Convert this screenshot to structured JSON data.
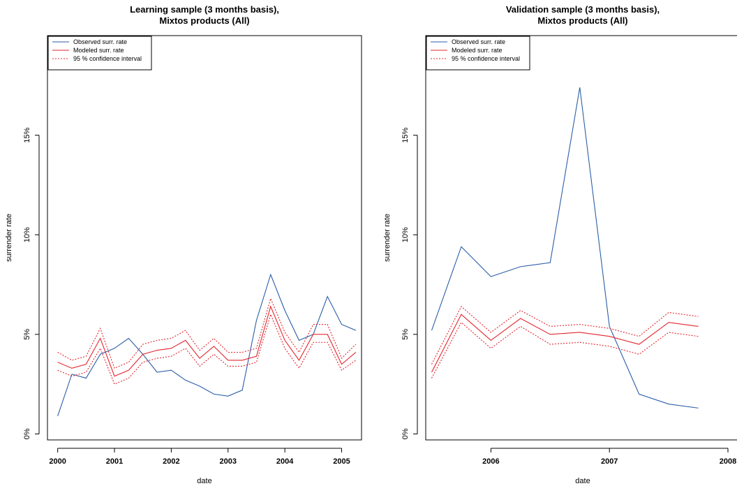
{
  "chart_data": [
    {
      "type": "line",
      "title": "Learning sample (3 months basis),",
      "subtitle": "Mixtos products (All)",
      "xlabel": "date",
      "ylabel": "surrender rate",
      "x_ticks": [
        "2000",
        "2001",
        "2002",
        "2003",
        "2004",
        "2005"
      ],
      "y_ticks": [
        "0%",
        "5%",
        "10%",
        "15%"
      ],
      "ylim": [
        -0.003,
        0.2
      ],
      "legend_position": "top-left",
      "x": [
        2000.0,
        2000.25,
        2000.5,
        2000.75,
        2001.0,
        2001.25,
        2001.5,
        2001.75,
        2002.0,
        2002.25,
        2002.5,
        2002.75,
        2003.0,
        2003.25,
        2003.5,
        2003.75,
        2004.0,
        2004.25,
        2004.5,
        2004.75,
        2005.0,
        2005.25
      ],
      "series": [
        {
          "name": "Observed surr. rate",
          "color": "#2b5ea8",
          "style": "solid",
          "values": [
            0.009,
            0.03,
            0.028,
            0.04,
            0.043,
            0.048,
            0.04,
            0.031,
            0.032,
            0.027,
            0.024,
            0.02,
            0.019,
            0.022,
            0.057,
            0.08,
            0.062,
            0.047,
            0.05,
            0.069,
            0.055,
            0.052
          ]
        },
        {
          "name": "Modeled surr. rate",
          "color": "#e3262e",
          "style": "solid",
          "values": [
            0.036,
            0.033,
            0.035,
            0.048,
            0.029,
            0.032,
            0.04,
            0.042,
            0.043,
            0.047,
            0.038,
            0.044,
            0.037,
            0.037,
            0.039,
            0.064,
            0.047,
            0.037,
            0.05,
            0.05,
            0.035,
            0.041
          ]
        },
        {
          "name": "95 % confidence interval",
          "color": "#e3262e",
          "style": "dotted",
          "values": [
            0.041,
            0.037,
            0.039,
            0.053,
            0.033,
            0.036,
            0.045,
            0.047,
            0.048,
            0.052,
            0.042,
            0.048,
            0.041,
            0.041,
            0.043,
            0.068,
            0.051,
            0.041,
            0.055,
            0.055,
            0.038,
            0.045
          ]
        },
        {
          "name": "",
          "color": "#e3262e",
          "style": "dotted",
          "values": [
            0.032,
            0.029,
            0.031,
            0.043,
            0.025,
            0.028,
            0.036,
            0.038,
            0.039,
            0.043,
            0.034,
            0.04,
            0.034,
            0.034,
            0.036,
            0.06,
            0.043,
            0.033,
            0.046,
            0.046,
            0.032,
            0.037
          ]
        }
      ]
    },
    {
      "type": "line",
      "title": "Validation sample (3 months basis),",
      "subtitle": "Mixtos products (All)",
      "xlabel": "date",
      "ylabel": "surrender rate",
      "x_ticks": [
        "2006",
        "2007",
        "2008"
      ],
      "y_ticks": [
        "0%",
        "5%",
        "10%",
        "15%"
      ],
      "ylim": [
        -0.003,
        0.2
      ],
      "legend_position": "top-left",
      "x": [
        2005.5,
        2005.75,
        2006.0,
        2006.25,
        2006.5,
        2006.75,
        2007.0,
        2007.25,
        2007.5,
        2007.75
      ],
      "series": [
        {
          "name": "Observed surr. rate",
          "color": "#2b5ea8",
          "style": "solid",
          "values": [
            0.052,
            0.094,
            0.079,
            0.084,
            0.086,
            0.174,
            0.054,
            0.02,
            0.015,
            0.013
          ]
        },
        {
          "name": "Modeled surr. rate",
          "color": "#e3262e",
          "style": "solid",
          "values": [
            0.031,
            0.06,
            0.047,
            0.058,
            0.05,
            0.051,
            0.049,
            0.045,
            0.056,
            0.054
          ]
        },
        {
          "name": "95 % confidence interval",
          "color": "#e3262e",
          "style": "dotted",
          "values": [
            0.035,
            0.064,
            0.051,
            0.062,
            0.054,
            0.055,
            0.053,
            0.049,
            0.061,
            0.059
          ]
        },
        {
          "name": "",
          "color": "#e3262e",
          "style": "dotted",
          "values": [
            0.028,
            0.056,
            0.043,
            0.054,
            0.045,
            0.046,
            0.044,
            0.04,
            0.051,
            0.049
          ]
        }
      ]
    }
  ]
}
